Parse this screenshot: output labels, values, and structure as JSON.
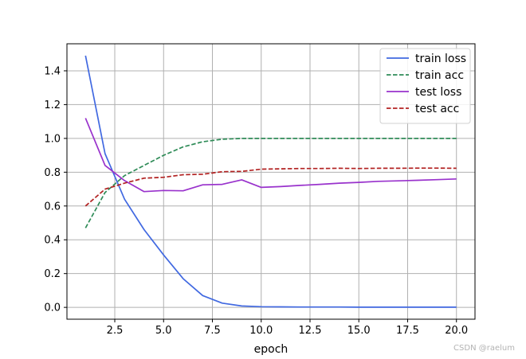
{
  "chart_data": {
    "type": "line",
    "title": "",
    "xlabel": "epoch",
    "ylabel": "",
    "xlim": [
      0.05,
      20.95
    ],
    "ylim": [
      -0.07,
      1.56
    ],
    "xticks": [
      2.5,
      5.0,
      7.5,
      10.0,
      12.5,
      15.0,
      17.5,
      20.0
    ],
    "xtick_labels": [
      "2.5",
      "5.0",
      "7.5",
      "10.0",
      "12.5",
      "15.0",
      "17.5",
      "20.0"
    ],
    "yticks": [
      0.0,
      0.2,
      0.4,
      0.6,
      0.8,
      1.0,
      1.2,
      1.4
    ],
    "ytick_labels": [
      "0.0",
      "0.2",
      "0.4",
      "0.6",
      "0.8",
      "1.0",
      "1.2",
      "1.4"
    ],
    "grid": true,
    "legend_position": "top-right",
    "x": [
      1,
      2,
      3,
      4,
      5,
      6,
      7,
      8,
      9,
      10,
      11,
      12,
      13,
      14,
      15,
      16,
      17,
      18,
      19,
      20
    ],
    "series": [
      {
        "name": "train loss",
        "color": "#4169e1",
        "style": "solid",
        "values": [
          1.49,
          0.91,
          0.64,
          0.46,
          0.31,
          0.17,
          0.07,
          0.025,
          0.008,
          0.004,
          0.003,
          0.002,
          0.002,
          0.002,
          0.001,
          0.001,
          0.001,
          0.001,
          0.001,
          0.001
        ]
      },
      {
        "name": "train acc",
        "color": "#2e8b57",
        "style": "dashed",
        "values": [
          0.47,
          0.68,
          0.78,
          0.84,
          0.9,
          0.95,
          0.98,
          0.995,
          1.0,
          1.0,
          1.0,
          1.0,
          1.0,
          1.0,
          1.0,
          1.0,
          1.0,
          1.0,
          1.0,
          1.0
        ]
      },
      {
        "name": "test loss",
        "color": "#9932cc",
        "style": "solid",
        "values": [
          1.12,
          0.84,
          0.75,
          0.685,
          0.692,
          0.69,
          0.725,
          0.728,
          0.755,
          0.71,
          0.715,
          0.722,
          0.728,
          0.735,
          0.74,
          0.746,
          0.749,
          0.752,
          0.756,
          0.76
        ]
      },
      {
        "name": "test acc",
        "color": "#b22222",
        "style": "dashed",
        "values": [
          0.6,
          0.7,
          0.735,
          0.765,
          0.77,
          0.785,
          0.788,
          0.803,
          0.805,
          0.818,
          0.82,
          0.822,
          0.822,
          0.823,
          0.822,
          0.823,
          0.823,
          0.824,
          0.824,
          0.823
        ]
      }
    ]
  },
  "watermark": "CSDN @raelum"
}
